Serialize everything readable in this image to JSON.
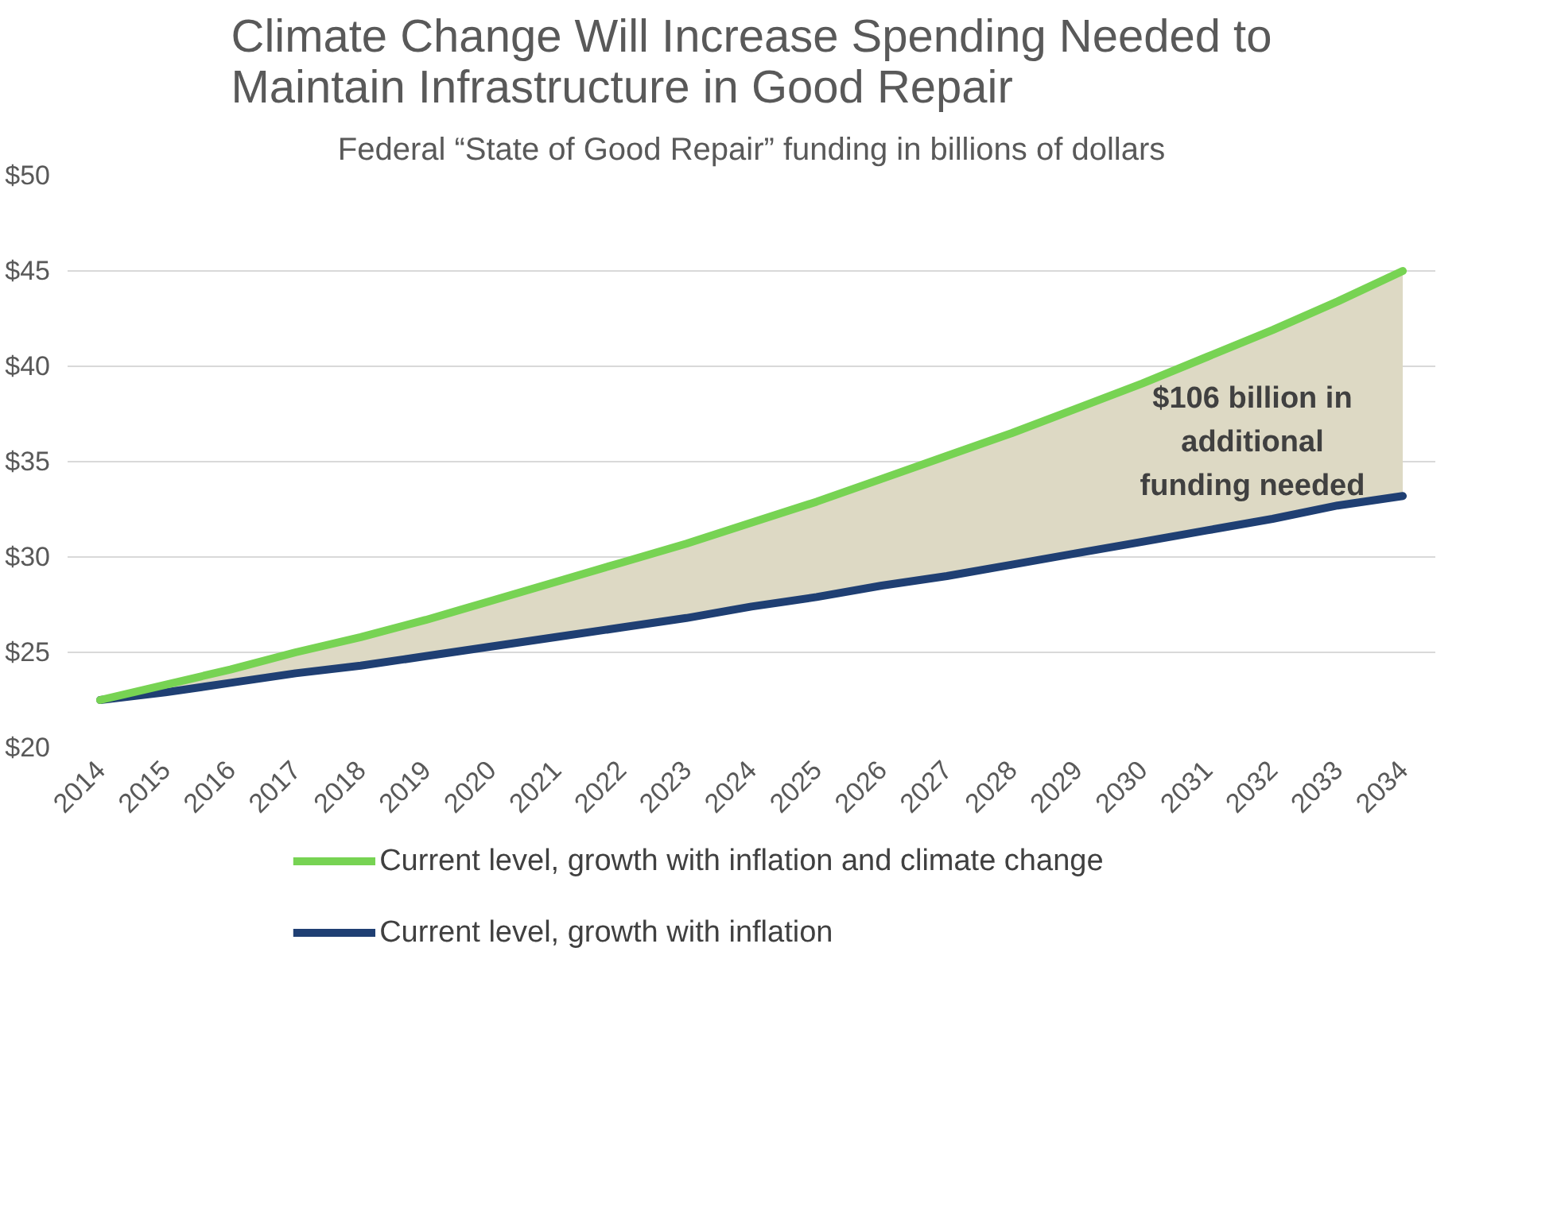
{
  "chart_data": {
    "type": "line",
    "title": "Climate Change Will Increase Spending Needed to\nMaintain Infrastructure in Good Repair",
    "subtitle": "Federal “State of Good Repair” funding in billions of dollars",
    "x": [
      2014,
      2015,
      2016,
      2017,
      2018,
      2019,
      2020,
      2021,
      2022,
      2023,
      2024,
      2025,
      2026,
      2027,
      2028,
      2029,
      2030,
      2031,
      2032,
      2033,
      2034
    ],
    "series": [
      {
        "name": "Current level, growth with inflation and climate change",
        "color": "#77d353",
        "values": [
          22.5,
          23.3,
          24.1,
          25.0,
          25.8,
          26.7,
          27.7,
          28.7,
          29.7,
          30.7,
          31.8,
          32.9,
          34.1,
          35.3,
          36.5,
          37.8,
          39.1,
          40.5,
          41.9,
          43.4,
          45.0
        ],
        "lower": [
          22.5,
          22.9,
          23.4,
          23.9,
          24.3,
          24.8,
          25.3,
          25.8,
          26.3,
          26.8,
          27.4,
          27.9,
          28.5,
          29.0,
          29.6,
          30.2,
          30.8,
          31.4,
          32.0,
          32.7,
          33.2
        ],
        "upper": [
          22.5,
          23.3,
          24.1,
          25.0,
          25.8,
          26.7,
          27.7,
          28.7,
          29.7,
          30.7,
          31.8,
          32.9,
          34.1,
          35.3,
          36.5,
          37.8,
          39.1,
          40.5,
          41.9,
          43.4,
          45.0
        ]
      },
      {
        "name": "Current level, growth with inflation",
        "color": "#1f3f73",
        "values": [
          22.5,
          22.9,
          23.4,
          23.9,
          24.3,
          24.8,
          25.3,
          25.8,
          26.3,
          26.8,
          27.4,
          27.9,
          28.5,
          29.0,
          29.6,
          30.2,
          30.8,
          31.4,
          32.0,
          32.7,
          33.2
        ]
      }
    ],
    "annotations": [
      "$106 billion in\nadditional\nfunding needed"
    ],
    "xlim": [
      2013.5,
      2034.5
    ],
    "xticks": [
      2014,
      2015,
      2016,
      2017,
      2018,
      2019,
      2020,
      2021,
      2022,
      2023,
      2024,
      2025,
      2026,
      2027,
      2028,
      2029,
      2030,
      2031,
      2032,
      2033,
      2034
    ],
    "ylim": [
      20,
      50
    ],
    "yticks": [
      {
        "value": 20,
        "label": "$20"
      },
      {
        "value": 25,
        "label": "$25"
      },
      {
        "value": 30,
        "label": "$30"
      },
      {
        "value": 35,
        "label": "$35"
      },
      {
        "value": 40,
        "label": "$40"
      },
      {
        "value": 45,
        "label": "$45"
      },
      {
        "value": 50,
        "label": "$50"
      }
    ],
    "grid": "y",
    "legend": "bottom",
    "marker": "none",
    "line_style": "solid"
  }
}
